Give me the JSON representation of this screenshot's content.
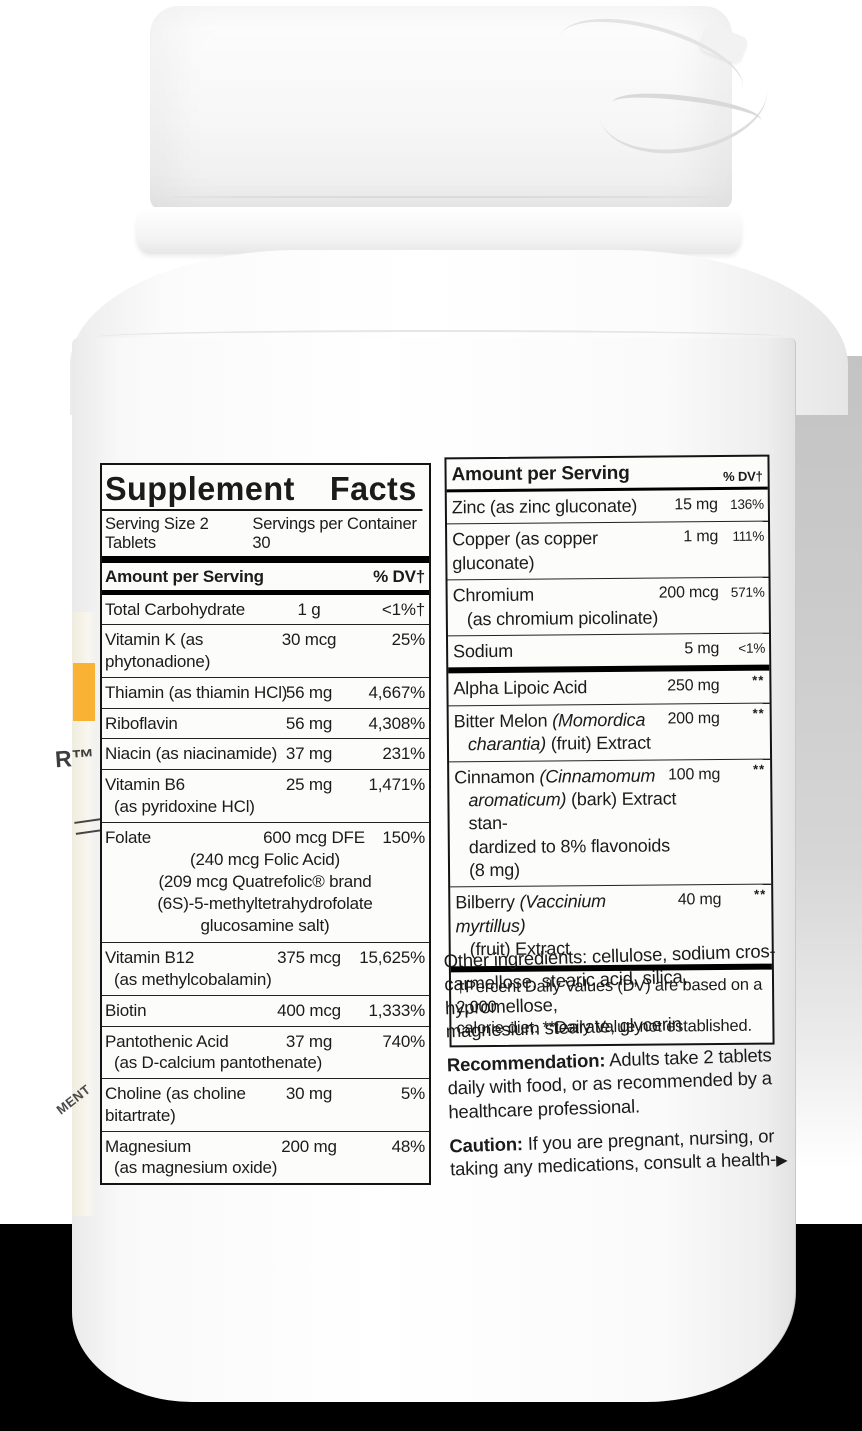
{
  "colors": {
    "background_bottom": "#000000",
    "front_label_yellow": "#F9B233",
    "right_shadow_gray": "#c7c7c7"
  },
  "wrap_fragments": {
    "trademark_fragment": "R™",
    "vertical_fragment": "MENT"
  },
  "supplement_facts": {
    "title": "Supplement Facts",
    "serving_size": "Serving Size 2 Tablets",
    "servings_per_container": "Servings per Container 30",
    "amount_header": "Amount per Serving",
    "dv_header": "% DV†",
    "rows": [
      {
        "name": "Total Carbohydrate",
        "amount": "1 g",
        "dv": "<1%†"
      },
      {
        "name": "Vitamin K (as phytonadione)",
        "amount": "30 mcg",
        "dv": "25%"
      },
      {
        "name": "Thiamin (as thiamin HCl)",
        "amount": "56 mg",
        "dv": "4,667%"
      },
      {
        "name": "Riboflavin",
        "amount": "56 mg",
        "dv": "4,308%"
      },
      {
        "name": "Niacin (as niacinamide)",
        "amount": "37 mg",
        "dv": "231%"
      },
      {
        "name": "Vitamin B6",
        "name2": "(as pyridoxine HCl)",
        "amount": "25 mg",
        "dv": "1,471%"
      },
      {
        "name": "Folate",
        "amount": "600 mcg DFE",
        "dv": "150%",
        "wide": true,
        "sublines": [
          "(240 mcg Folic Acid)",
          "(209 mcg Quatrefolic® brand",
          "(6S)-5-methyltetrahydrofolate",
          "glucosamine salt)"
        ]
      },
      {
        "name": "Vitamin B12",
        "name2": "(as methylcobalamin)",
        "amount": "375 mcg",
        "dv": "15,625%"
      },
      {
        "name": "Biotin",
        "amount": "400 mcg",
        "dv": "1,333%"
      },
      {
        "name": "Pantothenic Acid",
        "name2": "(as D-calcium pantothenate)",
        "amount": "37 mg",
        "dv": "740%"
      },
      {
        "name": "Choline (as choline bitartrate)",
        "amount": "30 mg",
        "dv": "5%"
      },
      {
        "name": "Magnesium",
        "name2": "(as magnesium oxide)",
        "amount": "200 mg",
        "dv": "48%"
      }
    ]
  },
  "right_panel": {
    "amount_header": "Amount per Serving",
    "dv_header": "% DV†",
    "mineral_rows": [
      {
        "lines": [
          [
            {
              "text": "Zinc (as zinc gluconate)"
            }
          ]
        ],
        "amount": "15 mg",
        "dv": "136%"
      },
      {
        "lines": [
          [
            {
              "text": "Copper (as copper gluconate)"
            }
          ]
        ],
        "amount": "1 mg",
        "dv": "111%"
      },
      {
        "lines": [
          [
            {
              "text": "Chromium"
            }
          ],
          [
            {
              "text": "(as chromium picolinate)",
              "indent": true
            }
          ]
        ],
        "amount": "200 mcg",
        "dv": "571%"
      },
      {
        "lines": [
          [
            {
              "text": "Sodium"
            }
          ]
        ],
        "amount": "5 mg",
        "dv": "<1%"
      }
    ],
    "botanical_rows": [
      {
        "lines": [
          [
            {
              "text": "Alpha Lipoic Acid"
            }
          ]
        ],
        "amount": "250 mg",
        "dv": "**"
      },
      {
        "lines": [
          [
            {
              "text": "Bitter Melon "
            },
            {
              "text": "(Momordica",
              "italic": true
            }
          ],
          [
            {
              "text": "charantia)",
              "italic": true,
              "indent": true
            },
            {
              "text": " (fruit) Extract"
            }
          ]
        ],
        "amount": "200 mg",
        "dv": "**"
      },
      {
        "lines": [
          [
            {
              "text": "Cinnamon "
            },
            {
              "text": "(Cinnamomum",
              "italic": true
            }
          ],
          [
            {
              "text": "aromaticum)",
              "italic": true,
              "indent": true
            },
            {
              "text": " (bark) Extract stan-"
            }
          ],
          [
            {
              "text": "dardized to 8% flavonoids (8 mg)",
              "indent": true
            }
          ]
        ],
        "amount": "100 mg",
        "dv": "**"
      },
      {
        "lines": [
          [
            {
              "text": "Bilberry "
            },
            {
              "text": "(Vaccinium myrtillus)",
              "italic": true
            }
          ],
          [
            {
              "text": "(fruit) Extract",
              "indent": true
            }
          ]
        ],
        "amount": "40 mg",
        "dv": "**"
      }
    ],
    "footnote_line1": "†Percent Daily Values (DV) are based on a 2,000",
    "footnote_line2": "calorie diet. **Daily Value not established."
  },
  "info_text": {
    "other_ingredients_lines": [
      [
        {
          "text": "Other ingredients: cellulose, sodium cros-"
        }
      ],
      [
        {
          "text": "carmellose, stearic acid, silica, hypromellose,"
        }
      ],
      [
        {
          "text": "magnesium stearate, glycerin"
        }
      ]
    ],
    "recommendation_lines": [
      [
        {
          "text": "Recommendation:",
          "bold": true
        },
        {
          "text": " Adults take 2 tablets"
        }
      ],
      [
        {
          "text": "daily with food, or as recommended by a"
        }
      ],
      [
        {
          "text": "healthcare professional."
        }
      ]
    ],
    "caution_lines": [
      [
        {
          "text": "Caution:",
          "bold": true
        },
        {
          "text": " If you are pregnant, nursing, or"
        }
      ],
      [
        {
          "text": "taking any medications, consult a health-"
        },
        {
          "text": "▶",
          "icon": "continuation-arrow"
        }
      ]
    ]
  }
}
